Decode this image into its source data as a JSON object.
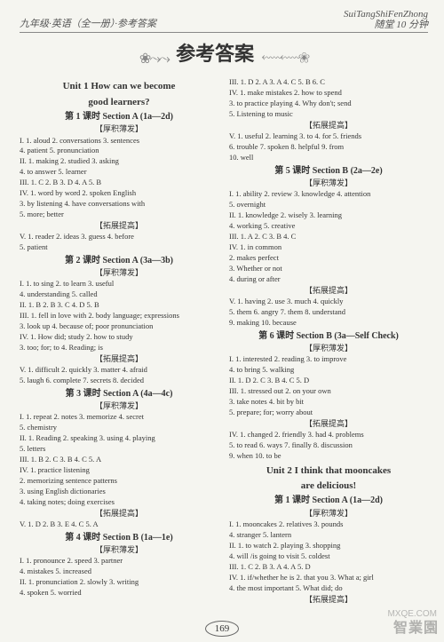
{
  "header": {
    "left": "九年级·英语（全一册）·参考答案",
    "right_top": "SuiTangShiFenZhong",
    "right_bottom": "随堂 10 分钟"
  },
  "banner": {
    "ornament_left": "❀⤳⤳",
    "title": "参考答案",
    "ornament_right": "⬳⬳❀"
  },
  "left_col": [
    {
      "type": "unit",
      "text": "Unit 1   How can we become"
    },
    {
      "type": "unit",
      "text": "good learners?"
    },
    {
      "type": "lesson",
      "text": "第 1 课时   Section A (1a—2d)"
    },
    {
      "type": "sub",
      "text": "【厚积薄发】"
    },
    {
      "type": "line",
      "text": "I. 1. aloud   2. conversations   3. sentences"
    },
    {
      "type": "line",
      "text": "4. patient   5. pronunciation"
    },
    {
      "type": "line",
      "text": "II. 1. making   2. studied   3. asking"
    },
    {
      "type": "line",
      "text": "4. to answer   5. learner"
    },
    {
      "type": "line",
      "text": "III. 1. C   2. B   3. D   4. A   5. B"
    },
    {
      "type": "line",
      "text": "IV. 1. word by word   2. spoken English"
    },
    {
      "type": "line",
      "text": "3. by listening   4. have conversations with"
    },
    {
      "type": "line",
      "text": "5. more; better"
    },
    {
      "type": "sub",
      "text": "【拓展提高】"
    },
    {
      "type": "line",
      "text": "V. 1. reader   2. ideas   3. guess   4. before"
    },
    {
      "type": "line",
      "text": "5. patient"
    },
    {
      "type": "lesson",
      "text": "第 2 课时   Section A (3a—3b)"
    },
    {
      "type": "sub",
      "text": "【厚积薄发】"
    },
    {
      "type": "line",
      "text": "I. 1. to sing   2. to learn   3. useful"
    },
    {
      "type": "line",
      "text": "4. understanding   5. called"
    },
    {
      "type": "line",
      "text": "II. 1. B   2. B   3. C   4. D   5. B"
    },
    {
      "type": "line",
      "text": "III. 1. fell in love with   2. body language; expressions"
    },
    {
      "type": "line",
      "text": "3. look up   4. because of; poor pronunciation"
    },
    {
      "type": "line",
      "text": "IV. 1. How did; study   2. how to study"
    },
    {
      "type": "line",
      "text": "3. too; for; to   4. Reading; is"
    },
    {
      "type": "sub",
      "text": "【拓展提高】"
    },
    {
      "type": "line",
      "text": "V. 1. difficult   2. quickly   3. matter   4. afraid"
    },
    {
      "type": "line",
      "text": "5. laugh   6. complete   7. secrets   8. decided"
    },
    {
      "type": "lesson",
      "text": "第 3 课时   Section A (4a—4c)"
    },
    {
      "type": "sub",
      "text": "【厚积薄发】"
    },
    {
      "type": "line",
      "text": "I. 1. repeat   2. notes   3. memorize   4. secret"
    },
    {
      "type": "line",
      "text": "5. chemistry"
    },
    {
      "type": "line",
      "text": "II. 1. Reading   2. speaking   3. using   4. playing"
    },
    {
      "type": "line",
      "text": "5. letters"
    },
    {
      "type": "line",
      "text": "III. 1. B   2. C   3. B   4. C   5. A"
    },
    {
      "type": "line",
      "text": "IV. 1. practice listening"
    },
    {
      "type": "line",
      "text": "2. memorizing sentence patterns"
    },
    {
      "type": "line",
      "text": "3. using English dictionaries"
    },
    {
      "type": "line",
      "text": "4. taking notes; doing exercises"
    },
    {
      "type": "sub",
      "text": "【拓展提高】"
    },
    {
      "type": "line",
      "text": "V. 1. D   2. B   3. E   4. C   5. A"
    },
    {
      "type": "lesson",
      "text": "第 4 课时   Section B (1a—1e)"
    },
    {
      "type": "sub",
      "text": "【厚积薄发】"
    },
    {
      "type": "line",
      "text": "I. 1. pronounce   2. speed   3. partner"
    },
    {
      "type": "line",
      "text": "4. mistakes   5. increased"
    },
    {
      "type": "line",
      "text": "II. 1. pronunciation   2. slowly   3. writing"
    },
    {
      "type": "line",
      "text": "4. spoken   5. worried"
    }
  ],
  "right_col": [
    {
      "type": "line",
      "text": "III. 1. D   2. A   3. A   4. C   5. B   6. C"
    },
    {
      "type": "line",
      "text": "IV. 1. make mistakes   2. how to spend"
    },
    {
      "type": "line",
      "text": "3. to practice playing   4. Why don't; send"
    },
    {
      "type": "line",
      "text": "5. Listening to music"
    },
    {
      "type": "sub",
      "text": "【拓展提高】"
    },
    {
      "type": "line",
      "text": "V. 1. useful   2. learning   3. to   4. for   5. friends"
    },
    {
      "type": "line",
      "text": "6. trouble   7. spoken   8. helpful   9. from"
    },
    {
      "type": "line",
      "text": "10. well"
    },
    {
      "type": "lesson",
      "text": "第 5 课时   Section B (2a—2e)"
    },
    {
      "type": "sub",
      "text": "【厚积薄发】"
    },
    {
      "type": "line",
      "text": "I. 1. ability   2. review   3. knowledge   4. attention"
    },
    {
      "type": "line",
      "text": "5. overnight"
    },
    {
      "type": "line",
      "text": "II. 1. knowledge   2. wisely   3. learning"
    },
    {
      "type": "line",
      "text": "4. working   5. creative"
    },
    {
      "type": "line",
      "text": "III. 1. A   2. C   3. B   4. C"
    },
    {
      "type": "line",
      "text": "IV. 1. in common"
    },
    {
      "type": "line",
      "text": "2. makes perfect"
    },
    {
      "type": "line",
      "text": "3. Whether or not"
    },
    {
      "type": "line",
      "text": "4. during or after"
    },
    {
      "type": "sub",
      "text": "【拓展提高】"
    },
    {
      "type": "line",
      "text": "V. 1. having   2. use   3. much   4. quickly"
    },
    {
      "type": "line",
      "text": "5. them   6. angry   7. them   8. understand"
    },
    {
      "type": "line",
      "text": "9. making   10. because"
    },
    {
      "type": "lesson",
      "text": "第 6 课时   Section B (3a—Self Check)"
    },
    {
      "type": "sub",
      "text": "【厚积薄发】"
    },
    {
      "type": "line",
      "text": "I. 1. interested   2. reading   3. to improve"
    },
    {
      "type": "line",
      "text": "4. to bring   5. walking"
    },
    {
      "type": "line",
      "text": "II. 1. D   2. C   3. B   4. C   5. D"
    },
    {
      "type": "line",
      "text": "III. 1. stressed out   2. on your own"
    },
    {
      "type": "line",
      "text": "3. take notes   4. bit by bit"
    },
    {
      "type": "line",
      "text": "5. prepare; for; worry about"
    },
    {
      "type": "sub",
      "text": "【拓展提高】"
    },
    {
      "type": "line",
      "text": "IV. 1. changed   2. friendly   3. had   4. problems"
    },
    {
      "type": "line",
      "text": "5. to read   6. ways   7. finally   8. discussion"
    },
    {
      "type": "line",
      "text": "9. when   10. to be"
    },
    {
      "type": "unit",
      "text": "Unit 2   I think that mooncakes"
    },
    {
      "type": "unit",
      "text": "are delicious!"
    },
    {
      "type": "lesson",
      "text": "第 1 课时   Section A (1a—2d)"
    },
    {
      "type": "sub",
      "text": "【厚积薄发】"
    },
    {
      "type": "line",
      "text": "I. 1. mooncakes   2. relatives   3. pounds"
    },
    {
      "type": "line",
      "text": "4. stranger   5. lantern"
    },
    {
      "type": "line",
      "text": "II. 1. to watch   2. playing   3. shopping"
    },
    {
      "type": "line",
      "text": "4. will /is going to visit   5. coldest"
    },
    {
      "type": "line",
      "text": "III. 1. C   2. B   3. A   4. A   5. D"
    },
    {
      "type": "line",
      "text": "IV. 1. if/whether he is   2. that you   3. What a; girl"
    },
    {
      "type": "line",
      "text": "4. the most important   5. What did; do"
    },
    {
      "type": "sub",
      "text": "【拓展提高】"
    }
  ],
  "page_number": "169",
  "watermark": {
    "main": "智業園",
    "sub": "MXQE.COM"
  }
}
